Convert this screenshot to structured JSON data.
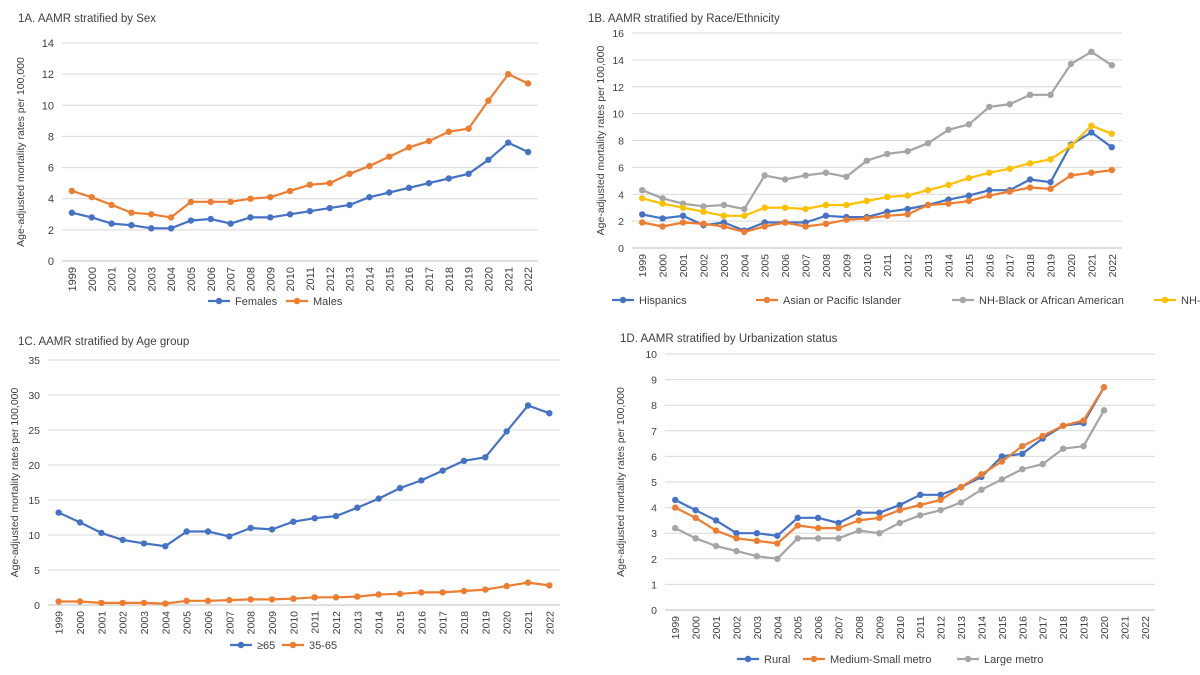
{
  "chart_data": [
    {
      "id": "1A",
      "type": "line",
      "title": "1A. AAMR  stratified by Sex",
      "ylabel": "Age-adjusted mortality rates per 100,000",
      "xlabel": "",
      "ylim": [
        0,
        14
      ],
      "ystep": 2,
      "categories": [
        "1999",
        "2000",
        "2001",
        "2002",
        "2003",
        "2004",
        "2005",
        "2006",
        "2007",
        "2008",
        "2009",
        "2010",
        "2011",
        "2012",
        "2013",
        "2014",
        "2015",
        "2016",
        "2017",
        "2018",
        "2019",
        "2020",
        "2021",
        "2022"
      ],
      "series": [
        {
          "name": "Females",
          "color": "#4472C4",
          "values": [
            3.1,
            2.8,
            2.4,
            2.3,
            2.1,
            2.1,
            2.6,
            2.7,
            2.4,
            2.8,
            2.8,
            3.0,
            3.2,
            3.4,
            3.6,
            4.1,
            4.4,
            4.7,
            5.0,
            5.3,
            5.6,
            6.5,
            7.6,
            7.0
          ]
        },
        {
          "name": "Males",
          "color": "#ED7D31",
          "values": [
            4.5,
            4.1,
            3.6,
            3.1,
            3.0,
            2.8,
            3.8,
            3.8,
            3.8,
            4.0,
            4.1,
            4.5,
            4.9,
            5.0,
            5.6,
            6.1,
            6.7,
            7.3,
            7.7,
            8.3,
            8.5,
            10.3,
            12.0,
            11.4
          ]
        }
      ],
      "legend": "bottom"
    },
    {
      "id": "1B",
      "type": "line",
      "title": "1B. AAMR stratified by Race/Ethnicity",
      "ylabel": "Age-adjusted mortality rates per 100,000",
      "xlabel": "",
      "ylim": [
        0,
        16
      ],
      "ystep": 2,
      "categories": [
        "1999",
        "2000",
        "2001",
        "2002",
        "2003",
        "2004",
        "2005",
        "2006",
        "2007",
        "2008",
        "2009",
        "2010",
        "2011",
        "2012",
        "2013",
        "2014",
        "2015",
        "2016",
        "2017",
        "2018",
        "2019",
        "2020",
        "2021",
        "2022"
      ],
      "series": [
        {
          "name": "Hispanics",
          "color": "#4472C4",
          "values": [
            2.5,
            2.2,
            2.4,
            1.7,
            1.9,
            1.3,
            1.9,
            1.9,
            1.9,
            2.4,
            2.3,
            2.3,
            2.7,
            2.9,
            3.2,
            3.6,
            3.9,
            4.3,
            4.3,
            5.1,
            4.9,
            7.7,
            8.6,
            7.5
          ]
        },
        {
          "name": "Asian or Pacific Islander",
          "color": "#ED7D31",
          "values": [
            1.9,
            1.6,
            1.9,
            1.8,
            1.6,
            1.2,
            1.6,
            1.9,
            1.6,
            1.8,
            2.1,
            2.2,
            2.4,
            2.5,
            3.2,
            3.3,
            3.5,
            3.9,
            4.2,
            4.5,
            4.4,
            5.4,
            5.6,
            5.8
          ]
        },
        {
          "name": "NH-Black or African American",
          "color": "#A5A5A5",
          "values": [
            4.3,
            3.7,
            3.3,
            3.1,
            3.2,
            2.9,
            5.4,
            5.1,
            5.4,
            5.6,
            5.3,
            6.5,
            7.0,
            7.2,
            7.8,
            8.8,
            9.2,
            10.5,
            10.7,
            11.4,
            11.4,
            13.7,
            14.6,
            13.6
          ]
        },
        {
          "name": "NH-White",
          "color": "#FFC000",
          "values": [
            3.7,
            3.3,
            3.0,
            2.7,
            2.4,
            2.4,
            3.0,
            3.0,
            2.9,
            3.2,
            3.2,
            3.5,
            3.8,
            3.9,
            4.3,
            4.7,
            5.2,
            5.6,
            5.9,
            6.3,
            6.6,
            7.6,
            9.1,
            8.5
          ]
        }
      ],
      "legend": "bottom"
    },
    {
      "id": "1C",
      "type": "line",
      "title": "1C. AAMR stratified by Age group",
      "ylabel": "Age-adjusted mortality rates per 100,000",
      "xlabel": "",
      "ylim": [
        0,
        35
      ],
      "ystep": 5,
      "categories": [
        "1999",
        "2000",
        "2001",
        "2002",
        "2003",
        "2004",
        "2005",
        "2006",
        "2007",
        "2008",
        "2009",
        "2010",
        "2011",
        "2012",
        "2013",
        "2014",
        "2015",
        "2016",
        "2017",
        "2018",
        "2019",
        "2020",
        "2021",
        "2022"
      ],
      "series": [
        {
          "name": "≥65",
          "color": "#4472C4",
          "values": [
            13.2,
            11.8,
            10.3,
            9.3,
            8.8,
            8.4,
            10.5,
            10.5,
            9.8,
            11.0,
            10.8,
            11.9,
            12.4,
            12.7,
            13.9,
            15.2,
            16.7,
            17.8,
            19.2,
            20.6,
            21.1,
            24.8,
            28.5,
            27.4
          ]
        },
        {
          "name": "35-65",
          "color": "#ED7D31",
          "values": [
            0.5,
            0.5,
            0.3,
            0.3,
            0.3,
            0.2,
            0.6,
            0.6,
            0.7,
            0.8,
            0.8,
            0.9,
            1.1,
            1.1,
            1.2,
            1.5,
            1.6,
            1.8,
            1.8,
            2.0,
            2.2,
            2.7,
            3.2,
            2.8
          ]
        }
      ],
      "legend": "bottom"
    },
    {
      "id": "1D",
      "type": "line",
      "title": "1D. AAMR  stratified by Urbanization status",
      "ylabel": "Age-adjusted mortality rates per 100,000",
      "xlabel": "",
      "ylim": [
        0,
        10
      ],
      "ystep": 1,
      "categories": [
        "1999",
        "2000",
        "2001",
        "2002",
        "2003",
        "2004",
        "2005",
        "2006",
        "2007",
        "2008",
        "2009",
        "2010",
        "2011",
        "2012",
        "2013",
        "2014",
        "2015",
        "2016",
        "2017",
        "2018",
        "2019",
        "2020",
        "2021",
        "2022"
      ],
      "series": [
        {
          "name": "Rural",
          "color": "#4472C4",
          "values": [
            4.3,
            3.9,
            3.5,
            3.0,
            3.0,
            2.9,
            3.6,
            3.6,
            3.4,
            3.8,
            3.8,
            4.1,
            4.5,
            4.5,
            4.8,
            5.2,
            6.0,
            6.1,
            6.7,
            7.2,
            7.3,
            8.7,
            null,
            null
          ]
        },
        {
          "name": "Medium-Small metro",
          "color": "#ED7D31",
          "values": [
            4.0,
            3.6,
            3.1,
            2.8,
            2.7,
            2.6,
            3.3,
            3.2,
            3.2,
            3.5,
            3.6,
            3.9,
            4.1,
            4.3,
            4.8,
            5.3,
            5.8,
            6.4,
            6.8,
            7.2,
            7.4,
            8.7,
            null,
            null
          ]
        },
        {
          "name": "Large metro",
          "color": "#A5A5A5",
          "values": [
            3.2,
            2.8,
            2.5,
            2.3,
            2.1,
            2.0,
            2.8,
            2.8,
            2.8,
            3.1,
            3.0,
            3.4,
            3.7,
            3.9,
            4.2,
            4.7,
            5.1,
            5.5,
            5.7,
            6.3,
            6.4,
            7.8,
            null,
            null
          ]
        }
      ],
      "legend": "bottom"
    }
  ]
}
